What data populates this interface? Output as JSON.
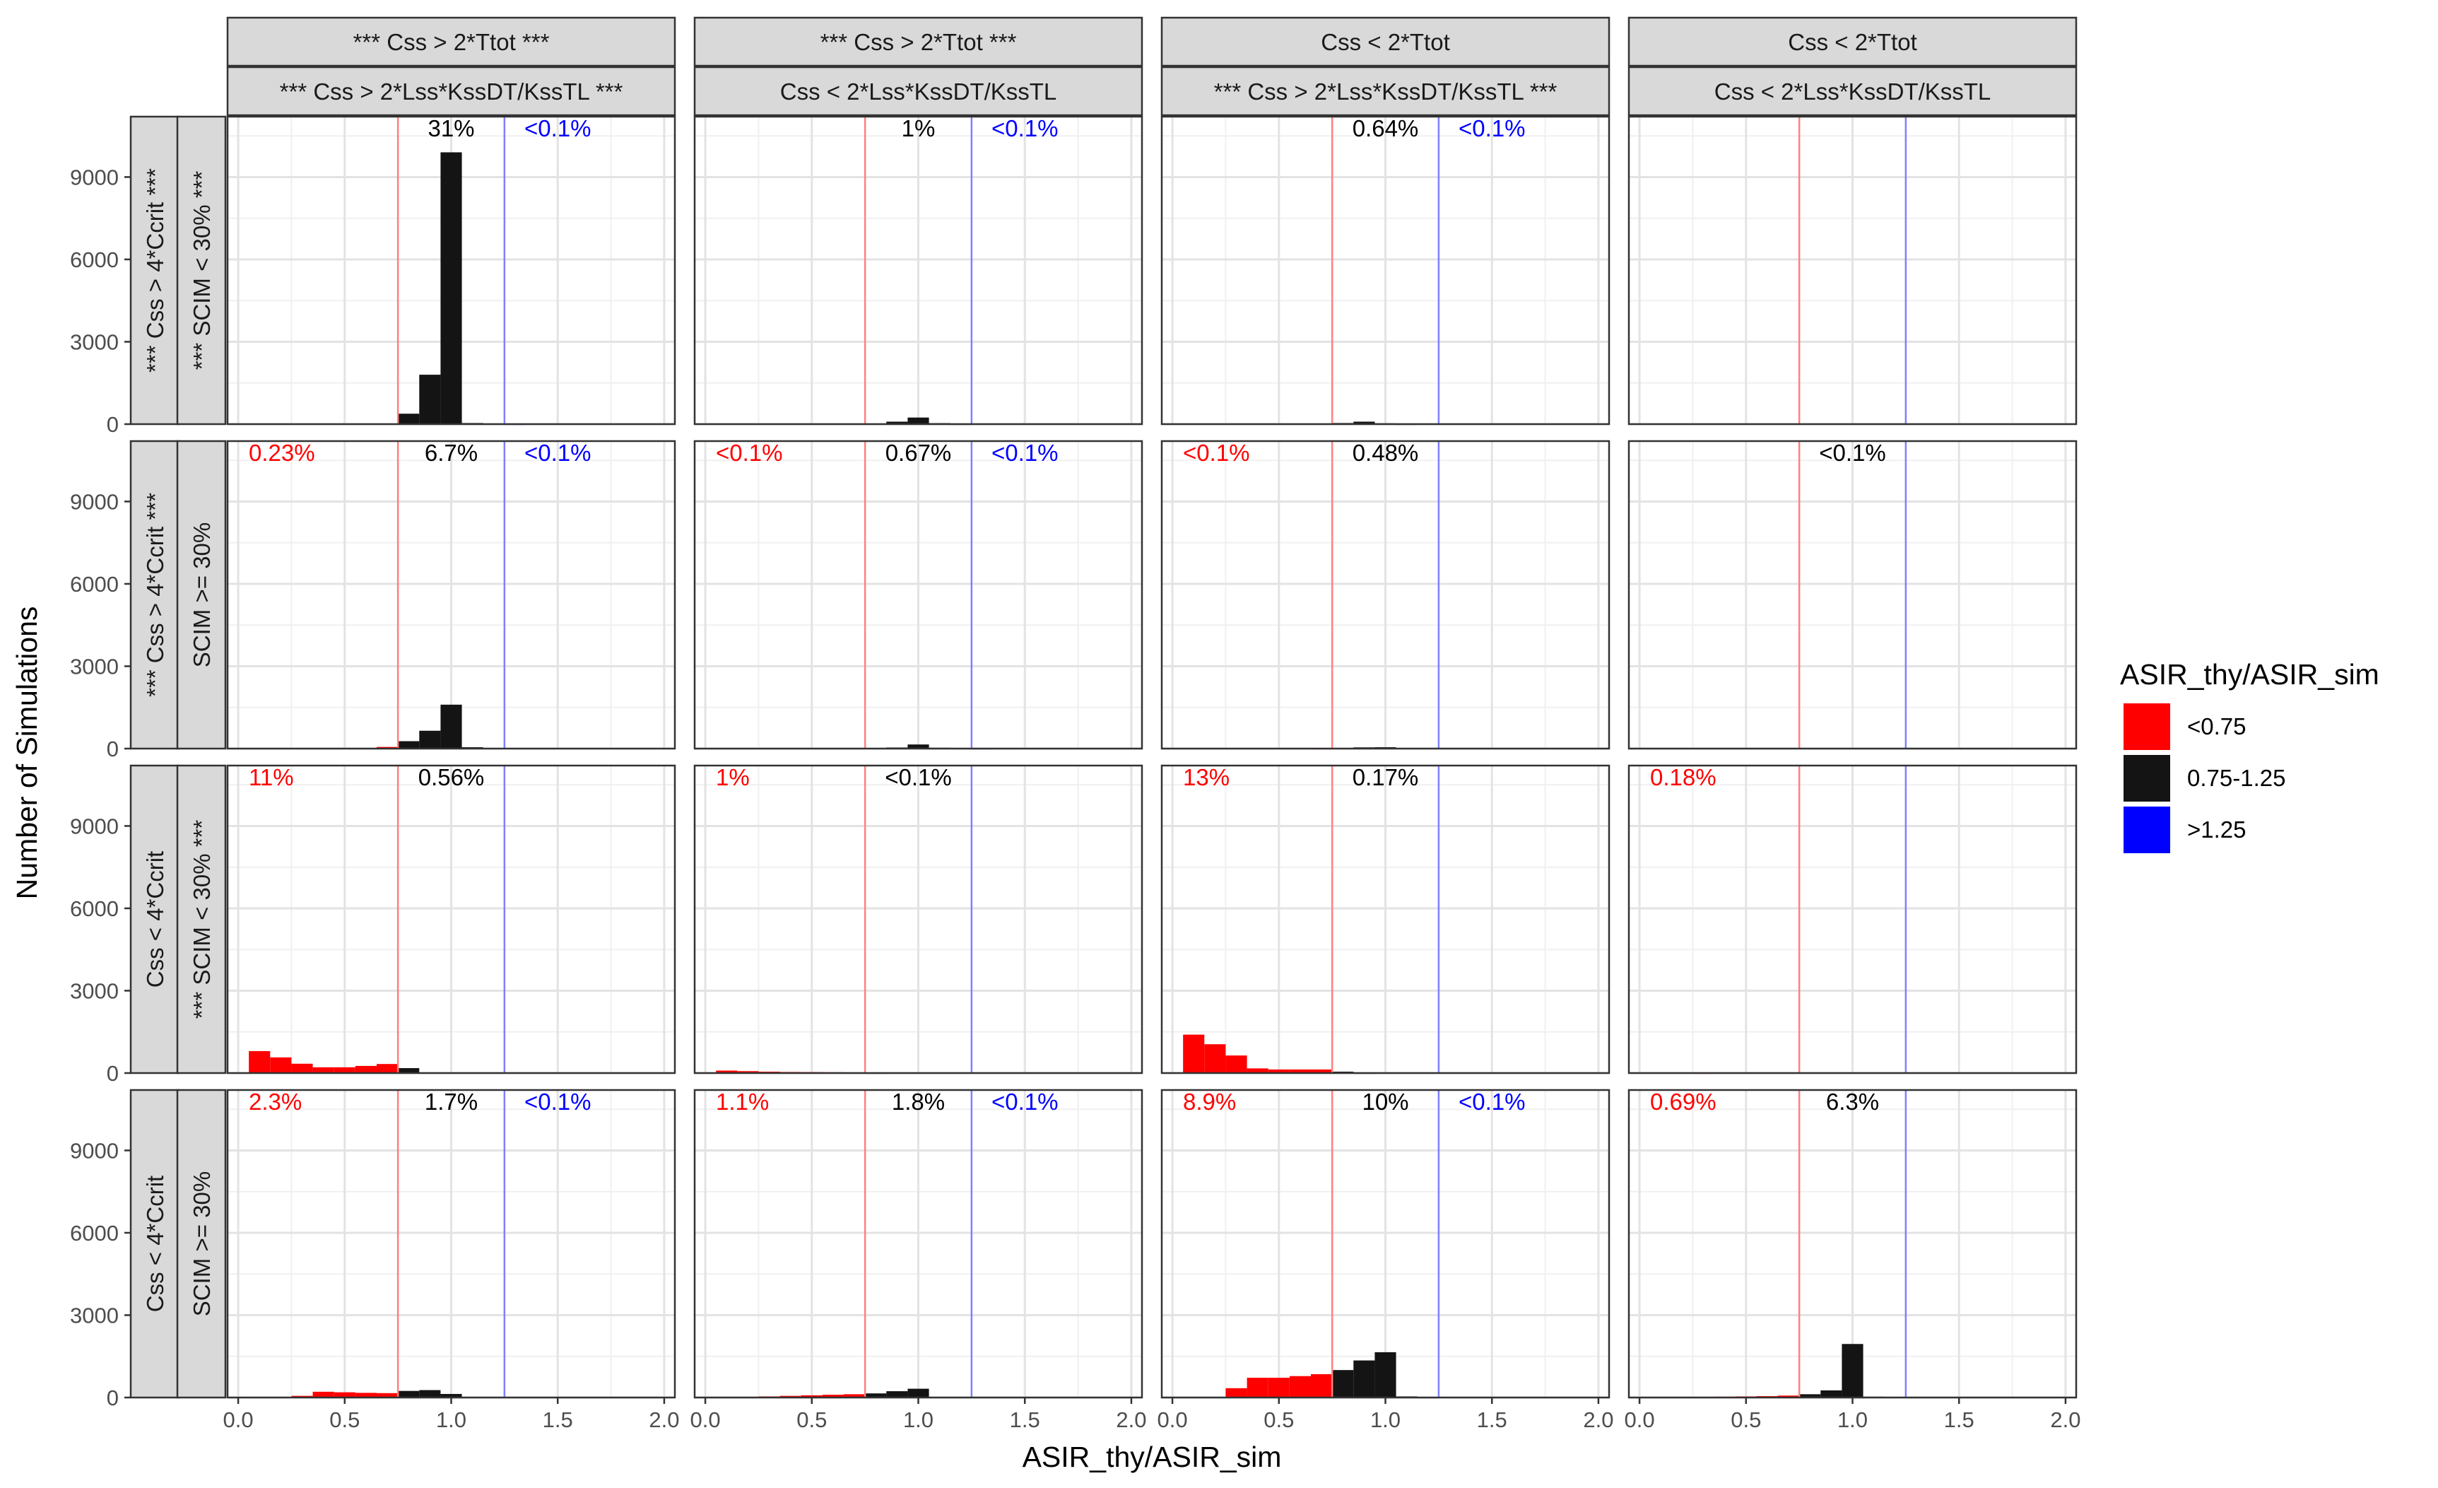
{
  "chart_data": {
    "type": "bar",
    "subtype": "faceted-histogram",
    "xlabel": "ASIR_thy/ASIR_sim",
    "ylabel": "Number of Simulations",
    "xlim": [
      -0.05,
      2.05
    ],
    "ylim": [
      0,
      11200
    ],
    "xticks": [
      0.0,
      0.5,
      1.0,
      1.5,
      2.0
    ],
    "xtick_labels": [
      "0.0",
      "0.5",
      "1.0",
      "1.5",
      "2.0"
    ],
    "yticks": [
      0,
      3000,
      6000,
      9000
    ],
    "ytick_labels": [
      "0",
      "3000",
      "6000",
      "9000"
    ],
    "bin_width": 0.1,
    "vlines": [
      {
        "x": 0.75,
        "color": "#ff8080"
      },
      {
        "x": 1.25,
        "color": "#8080ff"
      }
    ],
    "grid": true,
    "legend": {
      "title": "ASIR_thy/ASIR_sim",
      "position": "right",
      "items": [
        {
          "label": "<0.75",
          "color": "#ff0000"
        },
        {
          "label": "0.75-1.25",
          "color": "#141414"
        },
        {
          "label": ">1.25",
          "color": "#0000ff"
        }
      ]
    },
    "col_strips": [
      {
        "top": "*** Css > 2*Ttot ***",
        "bottom": "*** Css > 2*Lss*KssDT/KssTL ***"
      },
      {
        "top": "*** Css > 2*Ttot ***",
        "bottom": "Css < 2*Lss*KssDT/KssTL"
      },
      {
        "top": "Css < 2*Ttot",
        "bottom": "*** Css > 2*Lss*KssDT/KssTL ***"
      },
      {
        "top": "Css < 2*Ttot",
        "bottom": "Css < 2*Lss*KssDT/KssTL"
      }
    ],
    "row_strips": [
      {
        "outer": "*** Css > 4*Ccrit ***",
        "inner": "*** SCIM < 30% ***"
      },
      {
        "outer": "*** Css > 4*Ccrit ***",
        "inner": "SCIM >= 30%"
      },
      {
        "outer": "Css < 4*Ccrit",
        "inner": "*** SCIM < 30% ***"
      },
      {
        "outer": "Css < 4*Ccrit",
        "inner": "SCIM >= 30%"
      }
    ],
    "panels": [
      [
        {
          "annotations": {
            "red": "",
            "black": "31%",
            "blue": "<0.1%"
          },
          "bins": [
            {
              "x0": 0.75,
              "count": 380,
              "color": "#141414"
            },
            {
              "x0": 0.85,
              "count": 1800,
              "color": "#141414"
            },
            {
              "x0": 0.95,
              "count": 9900,
              "color": "#141414"
            },
            {
              "x0": 1.05,
              "count": 40,
              "color": "#141414"
            },
            {
              "x0": 1.15,
              "count": 15,
              "color": "#141414"
            },
            {
              "x0": 1.25,
              "count": 10,
              "color": "#0000ff"
            }
          ]
        },
        {
          "annotations": {
            "red": "",
            "black": "1%",
            "blue": "<0.1%"
          },
          "bins": [
            {
              "x0": 0.75,
              "count": 15,
              "color": "#141414"
            },
            {
              "x0": 0.85,
              "count": 90,
              "color": "#141414"
            },
            {
              "x0": 0.95,
              "count": 240,
              "color": "#141414"
            },
            {
              "x0": 1.05,
              "count": 35,
              "color": "#141414"
            },
            {
              "x0": 1.15,
              "count": 10,
              "color": "#141414"
            }
          ]
        },
        {
          "annotations": {
            "red": "",
            "black": "0.64%",
            "blue": "<0.1%"
          },
          "bins": [
            {
              "x0": 0.75,
              "count": 40,
              "color": "#141414"
            },
            {
              "x0": 0.85,
              "count": 90,
              "color": "#141414"
            },
            {
              "x0": 0.95,
              "count": 30,
              "color": "#141414"
            },
            {
              "x0": 1.05,
              "count": 10,
              "color": "#141414"
            }
          ]
        },
        {
          "annotations": {
            "red": "",
            "black": "",
            "blue": ""
          },
          "bins": []
        }
      ],
      [
        {
          "annotations": {
            "red": "0.23%",
            "black": "6.7%",
            "blue": "<0.1%"
          },
          "bins": [
            {
              "x0": 0.55,
              "count": 20,
              "color": "#ff0000"
            },
            {
              "x0": 0.65,
              "count": 60,
              "color": "#ff0000"
            },
            {
              "x0": 0.75,
              "count": 270,
              "color": "#141414"
            },
            {
              "x0": 0.85,
              "count": 650,
              "color": "#141414"
            },
            {
              "x0": 0.95,
              "count": 1600,
              "color": "#141414"
            },
            {
              "x0": 1.05,
              "count": 50,
              "color": "#141414"
            },
            {
              "x0": 1.15,
              "count": 15,
              "color": "#141414"
            }
          ]
        },
        {
          "annotations": {
            "red": "<0.1%",
            "black": "0.67%",
            "blue": "<0.1%"
          },
          "bins": [
            {
              "x0": 0.75,
              "count": 20,
              "color": "#141414"
            },
            {
              "x0": 0.85,
              "count": 40,
              "color": "#141414"
            },
            {
              "x0": 0.95,
              "count": 150,
              "color": "#141414"
            },
            {
              "x0": 1.05,
              "count": 30,
              "color": "#141414"
            },
            {
              "x0": 1.15,
              "count": 15,
              "color": "#141414"
            },
            {
              "x0": 1.25,
              "count": 10,
              "color": "#0000ff"
            }
          ]
        },
        {
          "annotations": {
            "red": "<0.1%",
            "black": "0.48%",
            "blue": ""
          },
          "bins": [
            {
              "x0": 0.65,
              "count": 10,
              "color": "#ff0000"
            },
            {
              "x0": 0.75,
              "count": 25,
              "color": "#141414"
            },
            {
              "x0": 0.85,
              "count": 45,
              "color": "#141414"
            },
            {
              "x0": 0.95,
              "count": 50,
              "color": "#141414"
            }
          ]
        },
        {
          "annotations": {
            "red": "",
            "black": "<0.1%",
            "blue": ""
          },
          "bins": [
            {
              "x0": 0.95,
              "count": 15,
              "color": "#141414"
            }
          ]
        }
      ],
      [
        {
          "annotations": {
            "red": "11%",
            "black": "0.56%",
            "blue": ""
          },
          "bins": [
            {
              "x0": 0.05,
              "count": 800,
              "color": "#ff0000"
            },
            {
              "x0": 0.15,
              "count": 570,
              "color": "#ff0000"
            },
            {
              "x0": 0.25,
              "count": 340,
              "color": "#ff0000"
            },
            {
              "x0": 0.35,
              "count": 210,
              "color": "#ff0000"
            },
            {
              "x0": 0.45,
              "count": 210,
              "color": "#ff0000"
            },
            {
              "x0": 0.55,
              "count": 260,
              "color": "#ff0000"
            },
            {
              "x0": 0.65,
              "count": 330,
              "color": "#ff0000"
            },
            {
              "x0": 0.75,
              "count": 180,
              "color": "#141414"
            },
            {
              "x0": 0.85,
              "count": 25,
              "color": "#141414"
            }
          ]
        },
        {
          "annotations": {
            "red": "1%",
            "black": "<0.1%",
            "blue": ""
          },
          "bins": [
            {
              "x0": 0.05,
              "count": 90,
              "color": "#ff0000"
            },
            {
              "x0": 0.15,
              "count": 70,
              "color": "#ff0000"
            },
            {
              "x0": 0.25,
              "count": 50,
              "color": "#ff0000"
            },
            {
              "x0": 0.35,
              "count": 40,
              "color": "#ff0000"
            },
            {
              "x0": 0.45,
              "count": 35,
              "color": "#ff0000"
            },
            {
              "x0": 0.55,
              "count": 30,
              "color": "#ff0000"
            },
            {
              "x0": 0.65,
              "count": 25,
              "color": "#ff0000"
            },
            {
              "x0": 0.75,
              "count": 10,
              "color": "#141414"
            }
          ]
        },
        {
          "annotations": {
            "red": "13%",
            "black": "0.17%",
            "blue": ""
          },
          "bins": [
            {
              "x0": 0.05,
              "count": 1400,
              "color": "#ff0000"
            },
            {
              "x0": 0.15,
              "count": 1050,
              "color": "#ff0000"
            },
            {
              "x0": 0.25,
              "count": 640,
              "color": "#ff0000"
            },
            {
              "x0": 0.35,
              "count": 170,
              "color": "#ff0000"
            },
            {
              "x0": 0.45,
              "count": 130,
              "color": "#ff0000"
            },
            {
              "x0": 0.55,
              "count": 130,
              "color": "#ff0000"
            },
            {
              "x0": 0.65,
              "count": 130,
              "color": "#ff0000"
            },
            {
              "x0": 0.75,
              "count": 50,
              "color": "#141414"
            },
            {
              "x0": 0.85,
              "count": 10,
              "color": "#141414"
            }
          ]
        },
        {
          "annotations": {
            "red": "0.18%",
            "black": "",
            "blue": ""
          },
          "bins": [
            {
              "x0": 0.05,
              "count": 20,
              "color": "#ff0000"
            },
            {
              "x0": 0.15,
              "count": 15,
              "color": "#ff0000"
            },
            {
              "x0": 0.25,
              "count": 10,
              "color": "#ff0000"
            }
          ]
        }
      ],
      [
        {
          "annotations": {
            "red": "2.3%",
            "black": "1.7%",
            "blue": "<0.1%"
          },
          "bins": [
            {
              "x0": 0.25,
              "count": 60,
              "color": "#ff0000"
            },
            {
              "x0": 0.35,
              "count": 210,
              "color": "#ff0000"
            },
            {
              "x0": 0.45,
              "count": 190,
              "color": "#ff0000"
            },
            {
              "x0": 0.55,
              "count": 170,
              "color": "#ff0000"
            },
            {
              "x0": 0.65,
              "count": 160,
              "color": "#ff0000"
            },
            {
              "x0": 0.75,
              "count": 240,
              "color": "#141414"
            },
            {
              "x0": 0.85,
              "count": 270,
              "color": "#141414"
            },
            {
              "x0": 0.95,
              "count": 130,
              "color": "#141414"
            },
            {
              "x0": 1.05,
              "count": 15,
              "color": "#141414"
            }
          ]
        },
        {
          "annotations": {
            "red": "1.1%",
            "black": "1.8%",
            "blue": "<0.1%"
          },
          "bins": [
            {
              "x0": 0.25,
              "count": 40,
              "color": "#ff0000"
            },
            {
              "x0": 0.35,
              "count": 60,
              "color": "#ff0000"
            },
            {
              "x0": 0.45,
              "count": 80,
              "color": "#ff0000"
            },
            {
              "x0": 0.55,
              "count": 100,
              "color": "#ff0000"
            },
            {
              "x0": 0.65,
              "count": 120,
              "color": "#ff0000"
            },
            {
              "x0": 0.75,
              "count": 150,
              "color": "#141414"
            },
            {
              "x0": 0.85,
              "count": 230,
              "color": "#141414"
            },
            {
              "x0": 0.95,
              "count": 320,
              "color": "#141414"
            },
            {
              "x0": 1.05,
              "count": 20,
              "color": "#141414"
            }
          ]
        },
        {
          "annotations": {
            "red": "8.9%",
            "black": "10%",
            "blue": "<0.1%"
          },
          "bins": [
            {
              "x0": 0.25,
              "count": 340,
              "color": "#ff0000"
            },
            {
              "x0": 0.35,
              "count": 720,
              "color": "#ff0000"
            },
            {
              "x0": 0.45,
              "count": 720,
              "color": "#ff0000"
            },
            {
              "x0": 0.55,
              "count": 780,
              "color": "#ff0000"
            },
            {
              "x0": 0.65,
              "count": 850,
              "color": "#ff0000"
            },
            {
              "x0": 0.75,
              "count": 1000,
              "color": "#141414"
            },
            {
              "x0": 0.85,
              "count": 1350,
              "color": "#141414"
            },
            {
              "x0": 0.95,
              "count": 1650,
              "color": "#141414"
            },
            {
              "x0": 1.05,
              "count": 40,
              "color": "#141414"
            },
            {
              "x0": 1.15,
              "count": 10,
              "color": "#141414"
            }
          ]
        },
        {
          "annotations": {
            "red": "0.69%",
            "black": "6.3%",
            "blue": ""
          },
          "bins": [
            {
              "x0": 0.25,
              "count": 20,
              "color": "#ff0000"
            },
            {
              "x0": 0.35,
              "count": 30,
              "color": "#ff0000"
            },
            {
              "x0": 0.45,
              "count": 40,
              "color": "#ff0000"
            },
            {
              "x0": 0.55,
              "count": 50,
              "color": "#ff0000"
            },
            {
              "x0": 0.65,
              "count": 70,
              "color": "#ff0000"
            },
            {
              "x0": 0.75,
              "count": 120,
              "color": "#141414"
            },
            {
              "x0": 0.85,
              "count": 260,
              "color": "#141414"
            },
            {
              "x0": 0.95,
              "count": 1950,
              "color": "#141414"
            },
            {
              "x0": 1.05,
              "count": 30,
              "color": "#141414"
            }
          ]
        }
      ]
    ]
  }
}
